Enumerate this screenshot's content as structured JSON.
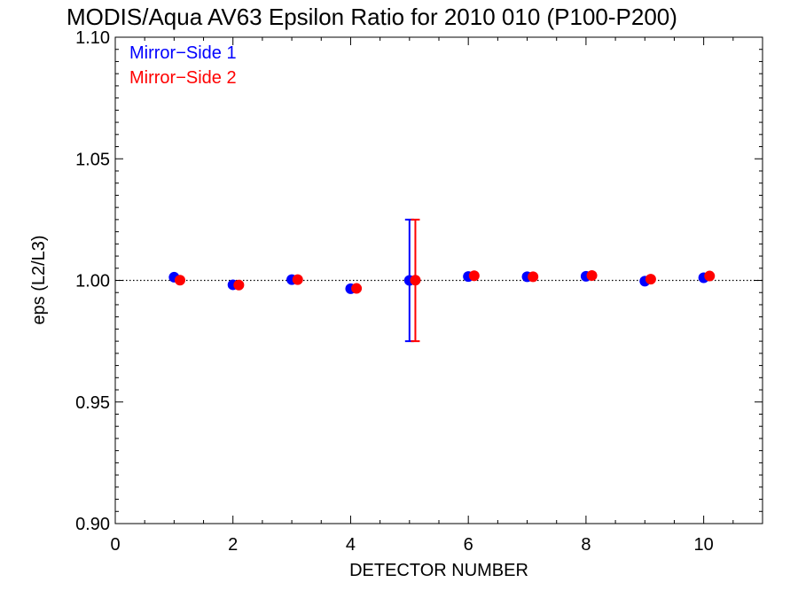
{
  "chart_data": {
    "type": "scatter",
    "title": "MODIS/Aqua AV63 Epsilon Ratio for 2010 010 (P100-P200)",
    "xlabel": "DETECTOR NUMBER",
    "ylabel": "eps (L2/L3)",
    "xlim": [
      0,
      11
    ],
    "ylim": [
      0.9,
      1.1
    ],
    "xticks": [
      "0",
      "2",
      "4",
      "6",
      "8",
      "10"
    ],
    "xtick_values": [
      0,
      2,
      4,
      6,
      8,
      10
    ],
    "yticks": [
      "0.90",
      "0.95",
      "1.00",
      "1.05",
      "1.10"
    ],
    "ytick_values": [
      0.9,
      0.95,
      1.0,
      1.05,
      1.1
    ],
    "reference_line": 1.0,
    "legend_position": "top-left",
    "series": [
      {
        "name": "Mirror−Side 1",
        "color": "#0000ff",
        "x": [
          1,
          2,
          3,
          4,
          5,
          6,
          7,
          8,
          9,
          10
        ],
        "y": [
          1.0013,
          0.9982,
          1.0003,
          0.9966,
          1.0,
          1.0016,
          1.0015,
          1.0017,
          0.9997,
          1.0011
        ],
        "error_bar": {
          "x": 5,
          "low": 0.975,
          "high": 1.025
        }
      },
      {
        "name": "Mirror−Side 2",
        "color": "#ff0000",
        "x": [
          1.1,
          2.1,
          3.1,
          4.1,
          5.1,
          6.1,
          7.1,
          8.1,
          9.1,
          10.1
        ],
        "y": [
          1.0001,
          0.9981,
          1.0003,
          0.9967,
          1.0001,
          1.0019,
          1.0015,
          1.002,
          1.0005,
          1.0018
        ],
        "error_bar": {
          "x": 5.1,
          "low": 0.975,
          "high": 1.025
        }
      }
    ]
  }
}
